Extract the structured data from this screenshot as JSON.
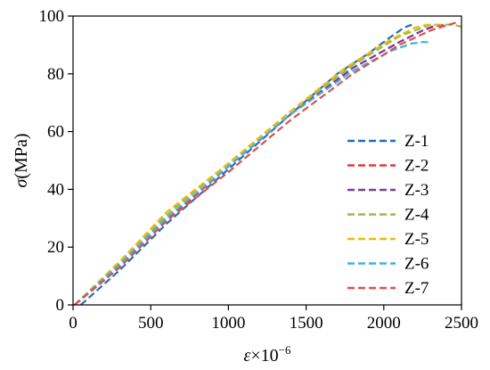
{
  "chart_data": {
    "type": "line",
    "title": "",
    "xlabel_symbol": "ε",
    "xlabel_suffix": "×10",
    "xlabel_exponent": "−6",
    "ylabel_symbol": "σ",
    "ylabel_unit": "(MPa)",
    "xlim": [
      0,
      2500
    ],
    "ylim": [
      0,
      100
    ],
    "x_ticks": [
      "0",
      "500",
      "1000",
      "1500",
      "2000",
      "2500"
    ],
    "y_ticks": [
      "0",
      "20",
      "40",
      "60",
      "80",
      "100"
    ],
    "grid": false,
    "legend_position": "lower-right",
    "line_style": "dashed",
    "series": [
      {
        "name": "Z-1",
        "color": "#1f6fbf",
        "x": [
          50,
          300,
          600,
          1000,
          1400,
          1700,
          1900,
          2050,
          2130,
          2180
        ],
        "y": [
          0,
          12,
          28,
          47,
          66,
          80,
          87,
          93,
          96,
          97
        ]
      },
      {
        "name": "Z-2",
        "color": "#e2373f",
        "x": [
          10,
          300,
          600,
          1000,
          1400,
          1800,
          2100,
          2250,
          2330,
          2400
        ],
        "y": [
          0,
          13,
          29,
          48,
          66,
          82,
          91,
          95,
          96.5,
          97
        ]
      },
      {
        "name": "Z-3",
        "color": "#7a3c9f",
        "x": [
          10,
          300,
          600,
          1000,
          1400,
          1800,
          2100,
          2250,
          2320
        ],
        "y": [
          0,
          14,
          30,
          48,
          66,
          82,
          91,
          95,
          96.5
        ]
      },
      {
        "name": "Z-4",
        "color": "#8fbf45",
        "x": [
          10,
          300,
          600,
          1000,
          1400,
          1800,
          2100,
          2300,
          2400,
          2450,
          2520
        ],
        "y": [
          0,
          15,
          31,
          49,
          67,
          83,
          93,
          97,
          97,
          97,
          96
        ]
      },
      {
        "name": "Z-5",
        "color": "#f2b705",
        "x": [
          10,
          300,
          600,
          1000,
          1400,
          1750,
          2050,
          2200,
          2280,
          2350
        ],
        "y": [
          0,
          15,
          32,
          49,
          67,
          82,
          92,
          96,
          97,
          97
        ]
      },
      {
        "name": "Z-6",
        "color": "#3db2e0",
        "x": [
          10,
          300,
          600,
          1000,
          1400,
          1800,
          2050,
          2180,
          2250,
          2290
        ],
        "y": [
          0,
          14,
          30,
          48,
          66,
          81,
          88,
          90.5,
          91,
          91
        ]
      },
      {
        "name": "Z-7",
        "color": "#d9534f",
        "x": [
          10,
          300,
          600,
          1000,
          1400,
          1800,
          2100,
          2300,
          2420,
          2480
        ],
        "y": [
          0,
          13,
          29,
          46,
          64,
          80,
          90,
          95,
          97,
          98
        ]
      }
    ]
  }
}
